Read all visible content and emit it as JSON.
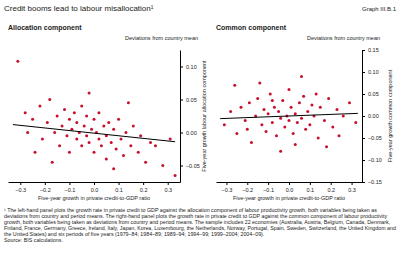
{
  "header": {
    "title": "Credit booms lead to labour misallocation¹",
    "graph_number": "Graph III.B.1"
  },
  "chart_data": [
    {
      "type": "scatter",
      "title": "Allocation component",
      "subtitle": "Deviations from country mean",
      "x_label": "Five-year growth in private credit-to-GDP ratio",
      "y_label": "Five-year growth labour allocation component",
      "xlim": [
        -0.35,
        0.35
      ],
      "xticks": [
        {
          "value": -0.3,
          "label": "–0.3"
        },
        {
          "value": -0.2,
          "label": "–0.2"
        },
        {
          "value": -0.1,
          "label": "–0.1"
        },
        {
          "value": 0,
          "label": "0.0"
        },
        0.1,
        0.2,
        0.3
      ],
      "ylim": [
        -0.075,
        0.125
      ],
      "yticks": [
        {
          "value": -0.05,
          "label": "–0.05"
        },
        {
          "value": 0,
          "label": "0.00"
        },
        {
          "value": 0.05,
          "label": "0.05"
        },
        {
          "value": 0.1,
          "label": "0.10"
        }
      ],
      "series": [
        {
          "type": "scatter",
          "color": "#c8102e",
          "marker": "circle",
          "x": [
            -0.31,
            -0.28,
            -0.25,
            -0.22,
            -0.21,
            -0.19,
            -0.18,
            -0.16,
            -0.15,
            -0.14,
            -0.13,
            -0.12,
            -0.11,
            -0.1,
            -0.1,
            -0.09,
            -0.08,
            -0.07,
            -0.07,
            -0.06,
            -0.05,
            -0.05,
            -0.04,
            -0.03,
            -0.03,
            -0.02,
            -0.01,
            0.0,
            0.0,
            0.01,
            0.02,
            0.02,
            0.03,
            0.04,
            0.05,
            0.05,
            0.06,
            0.07,
            0.08,
            0.09,
            0.1,
            0.11,
            0.12,
            0.13,
            0.15,
            0.16,
            0.18,
            0.19,
            0.21,
            0.23,
            0.25,
            0.28,
            0.31,
            0.33,
            -0.24,
            -0.02,
            0.08,
            -0.17,
            0.14,
            -0.27
          ],
          "values": [
            0.108,
            0.03,
            0.02,
            0.04,
            -0.01,
            0.015,
            0.05,
            0.0,
            0.025,
            -0.02,
            0.01,
            0.035,
            -0.005,
            0.02,
            -0.03,
            0.005,
            0.03,
            -0.01,
            0.015,
            0.0,
            -0.02,
            0.04,
            0.01,
            -0.005,
            0.025,
            -0.015,
            0.005,
            -0.03,
            0.02,
            0.0,
            -0.01,
            0.03,
            -0.02,
            0.01,
            -0.005,
            -0.04,
            0.015,
            -0.015,
            0.005,
            -0.025,
            0.02,
            -0.01,
            -0.035,
            0.0,
            -0.02,
            0.01,
            -0.03,
            -0.005,
            -0.045,
            -0.015,
            -0.02,
            -0.05,
            -0.01,
            -0.065,
            -0.03,
            0.06,
            -0.055,
            -0.045,
            0.045,
            0.0
          ]
        },
        {
          "type": "line",
          "color": "#000000",
          "line_style": "solid",
          "x": [
            -0.33,
            0.33
          ],
          "values": [
            0.012,
            -0.014
          ]
        }
      ]
    },
    {
      "type": "scatter",
      "title": "Common component",
      "subtitle": "Deviations from country mean",
      "x_label": "Five-year growth in private credit-to-GDP ratio",
      "y_label": "Five-year growth common component",
      "xlim": [
        -0.35,
        0.35
      ],
      "xticks": [
        {
          "value": -0.3,
          "label": "–0.3"
        },
        {
          "value": -0.2,
          "label": "–0.2"
        },
        {
          "value": -0.1,
          "label": "–0.1"
        },
        {
          "value": 0,
          "label": "0.0"
        },
        0.1,
        0.2,
        0.3
      ],
      "ylim": [
        -0.15,
        0.15
      ],
      "yticks": [
        {
          "value": -0.15,
          "label": "–0.15"
        },
        {
          "value": -0.1,
          "label": "–0.10"
        },
        {
          "value": -0.05,
          "label": "–0.05"
        },
        {
          "value": 0,
          "label": "0.00"
        },
        {
          "value": 0.05,
          "label": "0.05"
        },
        {
          "value": 0.1,
          "label": "0.10"
        },
        {
          "value": 0.15,
          "label": "0.15"
        }
      ],
      "series": [
        {
          "type": "scatter",
          "color": "#c8102e",
          "marker": "circle",
          "x": [
            -0.31,
            -0.28,
            -0.25,
            -0.23,
            -0.21,
            -0.19,
            -0.18,
            -0.16,
            -0.15,
            -0.13,
            -0.12,
            -0.11,
            -0.1,
            -0.09,
            -0.08,
            -0.07,
            -0.06,
            -0.05,
            -0.04,
            -0.03,
            -0.02,
            -0.01,
            0.0,
            0.0,
            0.01,
            0.02,
            0.03,
            0.04,
            0.05,
            0.06,
            0.07,
            0.08,
            0.09,
            0.1,
            0.11,
            0.12,
            0.14,
            0.15,
            0.17,
            0.19,
            0.21,
            0.23,
            0.26,
            0.29,
            0.32,
            -0.26,
            0.18,
            -0.04,
            0.06,
            -0.14,
            0.24,
            -0.08,
            0.13,
            -0.2,
            0.03
          ],
          "values": [
            -0.02,
            0.01,
            -0.04,
            0.02,
            -0.01,
            0.03,
            -0.06,
            0.0,
            0.04,
            -0.02,
            0.015,
            -0.035,
            0.005,
            0.05,
            -0.015,
            0.02,
            -0.045,
            0.01,
            -0.005,
            0.035,
            -0.025,
            0.0,
            0.06,
            -0.01,
            0.02,
            -0.04,
            0.005,
            -0.015,
            0.03,
            -0.005,
            0.045,
            -0.03,
            0.01,
            -0.02,
            0.025,
            0.0,
            -0.05,
            0.02,
            -0.01,
            0.04,
            -0.025,
            0.015,
            0.0,
            0.03,
            -0.015,
            0.07,
            -0.07,
            -0.08,
            0.09,
            0.075,
            -0.045,
            0.035,
            0.05,
            -0.03,
            -0.065
          ]
        },
        {
          "type": "line",
          "color": "#000000",
          "line_style": "solid",
          "x": [
            -0.33,
            0.33
          ],
          "values": [
            -0.006,
            0.006
          ]
        }
      ]
    }
  ],
  "footnote": "¹ The left-hand panel plots the growth rate in private credit to GDP against the allocation component of labour productivity growth, both variables being taken as deviations from country and period means. The right-hand panel plots the growth rate in private credit to GDP against the common component of labour productivity growth, both variables being taken as deviations from country and period means. The sample includes 22 economies (Australia, Austria, Belgium, Canada, Denmark, Finland, France, Germany, Greece, Ireland, Italy, Japan, Korea, Luxembourg, the Netherlands, Norway, Portugal, Spain, Sweden, Switzerland, the United Kingdom and the United States) and six periods of five years (1979–84; 1984–89; 1989–94; 1994–99; 1999–2004; 2004–09).",
  "source": "Source: BIS calculations."
}
